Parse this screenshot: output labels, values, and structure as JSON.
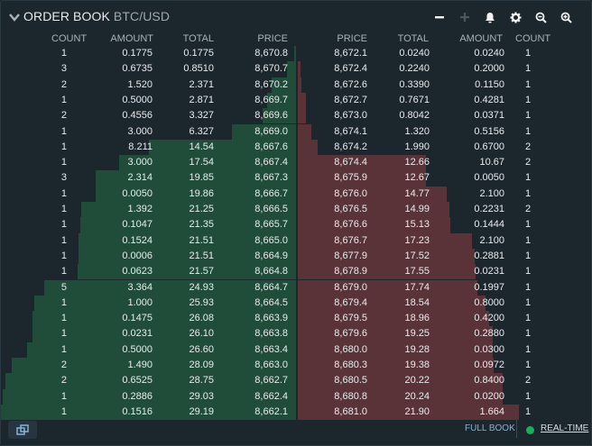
{
  "header": {
    "title": "ORDER BOOK",
    "pair": "BTC/USD",
    "icons": [
      "decrease-precision-icon",
      "increase-precision-icon",
      "bell-icon",
      "gear-icon",
      "zoom-out-icon",
      "zoom-in-icon"
    ]
  },
  "columns": {
    "bids": {
      "count": "COUNT",
      "amount": "AMOUNT",
      "total": "TOTAL",
      "price": "PRICE"
    },
    "asks": {
      "price": "PRICE",
      "total": "TOTAL",
      "amount": "AMOUNT",
      "count": "COUNT"
    }
  },
  "colors": {
    "bid_bar": "#1f4d3a",
    "ask_bar": "#5a3338",
    "background": "#1b262d",
    "link": "#86b3d9",
    "live_dot": "#16b157"
  },
  "bids": [
    {
      "count": "1",
      "amount": "0.1775",
      "total": "0.1775",
      "price": "8,670.8"
    },
    {
      "count": "3",
      "amount": "0.6735",
      "total": "0.8510",
      "price": "8,670.7"
    },
    {
      "count": "2",
      "amount": "1.520",
      "total": "2.371",
      "price": "8,670.2"
    },
    {
      "count": "1",
      "amount": "0.5000",
      "total": "2.871",
      "price": "8,669.7"
    },
    {
      "count": "2",
      "amount": "0.4556",
      "total": "3.327",
      "price": "8,669.6"
    },
    {
      "count": "1",
      "amount": "3.000",
      "total": "6.327",
      "price": "8,669.0"
    },
    {
      "count": "1",
      "amount": "8.211",
      "total": "14.54",
      "price": "8,667.6"
    },
    {
      "count": "1",
      "amount": "3.000",
      "total": "17.54",
      "price": "8,667.4"
    },
    {
      "count": "3",
      "amount": "2.314",
      "total": "19.85",
      "price": "8,667.3"
    },
    {
      "count": "1",
      "amount": "0.0050",
      "total": "19.86",
      "price": "8,666.7"
    },
    {
      "count": "1",
      "amount": "1.392",
      "total": "21.25",
      "price": "8,666.5"
    },
    {
      "count": "1",
      "amount": "0.1047",
      "total": "21.35",
      "price": "8,665.7"
    },
    {
      "count": "1",
      "amount": "0.1524",
      "total": "21.51",
      "price": "8,665.0"
    },
    {
      "count": "1",
      "amount": "0.0006",
      "total": "21.51",
      "price": "8,664.9"
    },
    {
      "count": "1",
      "amount": "0.0623",
      "total": "21.57",
      "price": "8,664.8"
    },
    {
      "count": "5",
      "amount": "3.364",
      "total": "24.93",
      "price": "8,664.7"
    },
    {
      "count": "1",
      "amount": "1.000",
      "total": "25.93",
      "price": "8,664.5"
    },
    {
      "count": "1",
      "amount": "0.1475",
      "total": "26.08",
      "price": "8,663.9"
    },
    {
      "count": "1",
      "amount": "0.0231",
      "total": "26.10",
      "price": "8,663.8"
    },
    {
      "count": "1",
      "amount": "0.5000",
      "total": "26.60",
      "price": "8,663.4"
    },
    {
      "count": "2",
      "amount": "1.490",
      "total": "28.09",
      "price": "8,663.0"
    },
    {
      "count": "2",
      "amount": "0.6525",
      "total": "28.75",
      "price": "8,662.7"
    },
    {
      "count": "1",
      "amount": "0.2886",
      "total": "29.03",
      "price": "8,662.4"
    },
    {
      "count": "1",
      "amount": "0.1516",
      "total": "29.19",
      "price": "8,662.1"
    }
  ],
  "asks": [
    {
      "price": "8,672.1",
      "total": "0.0240",
      "amount": "0.0240",
      "count": "1"
    },
    {
      "price": "8,672.4",
      "total": "0.2240",
      "amount": "0.2000",
      "count": "1"
    },
    {
      "price": "8,672.6",
      "total": "0.3390",
      "amount": "0.1150",
      "count": "1"
    },
    {
      "price": "8,672.7",
      "total": "0.7671",
      "amount": "0.4281",
      "count": "1"
    },
    {
      "price": "8,673.0",
      "total": "0.8042",
      "amount": "0.0371",
      "count": "1"
    },
    {
      "price": "8,674.1",
      "total": "1.320",
      "amount": "0.5156",
      "count": "1"
    },
    {
      "price": "8,674.2",
      "total": "1.990",
      "amount": "0.6700",
      "count": "2"
    },
    {
      "price": "8,674.4",
      "total": "12.66",
      "amount": "10.67",
      "count": "2"
    },
    {
      "price": "8,675.9",
      "total": "12.67",
      "amount": "0.0050",
      "count": "1"
    },
    {
      "price": "8,676.0",
      "total": "14.77",
      "amount": "2.100",
      "count": "1"
    },
    {
      "price": "8,676.5",
      "total": "14.99",
      "amount": "0.2231",
      "count": "2"
    },
    {
      "price": "8,676.6",
      "total": "15.13",
      "amount": "0.1444",
      "count": "1"
    },
    {
      "price": "8,676.7",
      "total": "17.23",
      "amount": "2.100",
      "count": "1"
    },
    {
      "price": "8,677.9",
      "total": "17.52",
      "amount": "0.2881",
      "count": "1"
    },
    {
      "price": "8,678.9",
      "total": "17.55",
      "amount": "0.0231",
      "count": "1"
    },
    {
      "price": "8,679.0",
      "total": "17.74",
      "amount": "0.1997",
      "count": "1"
    },
    {
      "price": "8,679.4",
      "total": "18.54",
      "amount": "0.8000",
      "count": "1"
    },
    {
      "price": "8,679.5",
      "total": "18.96",
      "amount": "0.4200",
      "count": "1"
    },
    {
      "price": "8,679.6",
      "total": "19.25",
      "amount": "0.2880",
      "count": "1"
    },
    {
      "price": "8,680.0",
      "total": "19.28",
      "amount": "0.0300",
      "count": "1"
    },
    {
      "price": "8,680.3",
      "total": "19.38",
      "amount": "0.0972",
      "count": "1"
    },
    {
      "price": "8,680.5",
      "total": "20.22",
      "amount": "0.8400",
      "count": "2"
    },
    {
      "price": "8,680.8",
      "total": "20.24",
      "amount": "0.0200",
      "count": "1"
    },
    {
      "price": "8,681.0",
      "total": "21.90",
      "amount": "1.664",
      "count": "1"
    }
  ],
  "footer": {
    "expand_icon": "popout-icon",
    "full_book": "FULL BOOK",
    "real_time": "REAL-TIME"
  }
}
